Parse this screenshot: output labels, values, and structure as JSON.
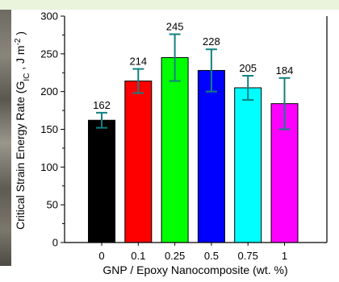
{
  "chart_data": {
    "type": "bar",
    "categories": [
      "0",
      "0.1",
      "0.25",
      "0.5",
      "0.75",
      "1"
    ],
    "values": [
      162,
      214,
      245,
      228,
      205,
      184
    ],
    "data_labels": [
      "162",
      "214",
      "245",
      "228",
      "205",
      "184"
    ],
    "error": [
      10,
      16,
      31,
      28,
      16,
      34
    ],
    "colors": [
      "#000000",
      "#ff0000",
      "#00ff00",
      "#0000ff",
      "#00ffff",
      "#ff00ff"
    ],
    "error_color": "#138080",
    "xlabel": "GNP / Epoxy Nanocomposite (wt. %)",
    "ylabel": "Critical Strain Energy Rate (G_IC , J m^-2 )",
    "ylabel_parts": {
      "main": "Critical Strain Energy Rate (G",
      "sub": "IC",
      "mid": " ,  J m",
      "sup": "-2",
      "end": " )"
    },
    "ylim": [
      0,
      300
    ],
    "yticks": [
      "0",
      "50",
      "100",
      "150",
      "200",
      "250",
      "300"
    ],
    "ytick_values": [
      0,
      50,
      100,
      150,
      200,
      250,
      300
    ],
    "grid": false,
    "legend": "none"
  }
}
